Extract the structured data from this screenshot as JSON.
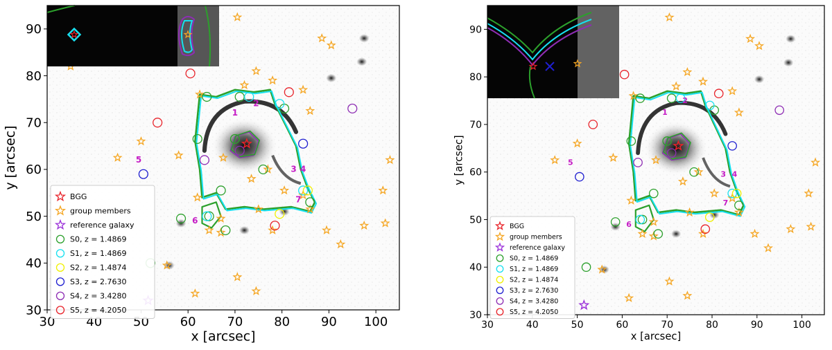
{
  "chart_data": [
    {
      "type": "scatter",
      "xlabel": "x [arcsec]",
      "ylabel": "y [arcsec]",
      "xlim": [
        30,
        105
      ],
      "ylim": [
        30,
        95
      ],
      "xticks": [
        30,
        40,
        50,
        60,
        70,
        80,
        90,
        100
      ],
      "yticks": [
        30,
        40,
        50,
        60,
        70,
        80,
        90
      ],
      "legend_position": "lower-left",
      "legend": [
        {
          "label": "BGG",
          "marker": "star",
          "color": "#e8232a"
        },
        {
          "label": "group members",
          "marker": "star",
          "color": "#f5a623"
        },
        {
          "label": "reference galaxy",
          "marker": "star",
          "color": "#9b30d9"
        },
        {
          "label": "S0, z = 1.4869",
          "marker": "circle",
          "color": "#2ca02c"
        },
        {
          "label": "S1, z = 1.4869",
          "marker": "circle",
          "color": "#17e0f0"
        },
        {
          "label": "S2, z = 1.4874",
          "marker": "circle",
          "color": "#f0f000"
        },
        {
          "label": "S3, z = 2.7630",
          "marker": "circle",
          "color": "#1f1fd0"
        },
        {
          "label": "S4, z = 3.4280",
          "marker": "circle",
          "color": "#8e2db4"
        },
        {
          "label": "S5, z = 4.2050",
          "marker": "circle",
          "color": "#e8232a"
        }
      ],
      "image_labels": [
        {
          "text": "1",
          "x": 70.0,
          "y": 71.5
        },
        {
          "text": "2",
          "x": 74.5,
          "y": 73.5
        },
        {
          "text": "3",
          "x": 82.5,
          "y": 59.5
        },
        {
          "text": "4",
          "x": 84.5,
          "y": 59.5
        },
        {
          "text": "5",
          "x": 49.5,
          "y": 61.5
        },
        {
          "text": "6",
          "x": 61.5,
          "y": 48.5
        },
        {
          "text": "7",
          "x": 83.5,
          "y": 53.0
        }
      ],
      "bgg": [
        {
          "x": 72.5,
          "y": 65.5
        }
      ],
      "group_members": [
        [
          70.5,
          92.5
        ],
        [
          88.5,
          88
        ],
        [
          90.5,
          86.5
        ],
        [
          84.5,
          77
        ],
        [
          78,
          79
        ],
        [
          74.5,
          81
        ],
        [
          72,
          78
        ],
        [
          86,
          72.5
        ],
        [
          62.5,
          76
        ],
        [
          50,
          66
        ],
        [
          45,
          62.5
        ],
        [
          58,
          63
        ],
        [
          67.5,
          62.5
        ],
        [
          73.5,
          58
        ],
        [
          77,
          60
        ],
        [
          80.5,
          55.5
        ],
        [
          84.5,
          54.5
        ],
        [
          86,
          51.5
        ],
        [
          75,
          51.5
        ],
        [
          67,
          49.5
        ],
        [
          64.5,
          47
        ],
        [
          67,
          46.5
        ],
        [
          62,
          54
        ],
        [
          55.5,
          39.5
        ],
        [
          70.5,
          37
        ],
        [
          74.5,
          34
        ],
        [
          61.5,
          33.5
        ],
        [
          78,
          47
        ],
        [
          89.5,
          47
        ],
        [
          92.5,
          44
        ],
        [
          97.5,
          48
        ],
        [
          102,
          48.5
        ],
        [
          101.5,
          55.5
        ],
        [
          103,
          62
        ],
        [
          35,
          82
        ]
      ],
      "reference_galaxy": [
        {
          "x": 51.5,
          "y": 32
        }
      ],
      "circles": {
        "S0": [
          [
            71,
            75.5
          ],
          [
            80.5,
            73
          ],
          [
            62,
            66.5
          ],
          [
            70,
            66.5
          ],
          [
            76,
            60
          ],
          [
            67,
            55.5
          ],
          [
            86,
            53
          ],
          [
            64.5,
            50
          ],
          [
            68,
            47
          ],
          [
            52,
            40
          ],
          [
            58.5,
            49.5
          ],
          [
            64,
            75.5
          ]
        ],
        "S1": [
          [
            73,
            75.5
          ],
          [
            79.5,
            74
          ],
          [
            84.5,
            55.5
          ],
          [
            64,
            50
          ]
        ],
        "S2": [
          [
            85.5,
            55.5
          ],
          [
            79.5,
            50.5
          ]
        ],
        "S3": [
          [
            84.5,
            65.5
          ],
          [
            50.5,
            59
          ]
        ],
        "S4": [
          [
            95,
            73
          ],
          [
            63.5,
            62
          ],
          [
            71,
            64
          ]
        ],
        "S5": [
          [
            60.5,
            80.5
          ],
          [
            53.5,
            70
          ],
          [
            81.5,
            76.5
          ],
          [
            78.5,
            48
          ]
        ]
      },
      "inset": {
        "position": "top-left"
      }
    },
    {
      "type": "scatter",
      "xlabel": "x [arcsec]",
      "ylabel": "y [arcsec]",
      "xlim": [
        30,
        105
      ],
      "ylim": [
        30,
        95
      ],
      "xticks": [
        30,
        40,
        50,
        60,
        70,
        80,
        90,
        100
      ],
      "yticks": [
        30,
        40,
        50,
        60,
        70,
        80,
        90
      ],
      "legend_position": "lower-left",
      "legend": [
        {
          "label": "BGG",
          "marker": "star",
          "color": "#e8232a"
        },
        {
          "label": "group members",
          "marker": "star",
          "color": "#f5a623"
        },
        {
          "label": "reference galaxy",
          "marker": "star",
          "color": "#9b30d9"
        },
        {
          "label": "S0, z = 1.4869",
          "marker": "circle",
          "color": "#2ca02c"
        },
        {
          "label": "S1, z = 1.4869",
          "marker": "circle",
          "color": "#17e0f0"
        },
        {
          "label": "S2, z = 1.4874",
          "marker": "circle",
          "color": "#f0f000"
        },
        {
          "label": "S3, z = 2.7630",
          "marker": "circle",
          "color": "#1f1fd0"
        },
        {
          "label": "S4, z = 3.4280",
          "marker": "circle",
          "color": "#8e2db4"
        },
        {
          "label": "S5, z = 4.2050",
          "marker": "circle",
          "color": "#e8232a"
        }
      ],
      "image_labels": [
        {
          "text": "1",
          "x": 69.5,
          "y": 72
        },
        {
          "text": "2",
          "x": 74,
          "y": 74.5
        },
        {
          "text": "3",
          "x": 82.5,
          "y": 59
        },
        {
          "text": "4",
          "x": 85,
          "y": 59
        },
        {
          "text": "5",
          "x": 48.5,
          "y": 61.5
        },
        {
          "text": "6",
          "x": 61.5,
          "y": 48.5
        },
        {
          "text": "7",
          "x": 83,
          "y": 53
        }
      ],
      "bgg": [
        {
          "x": 72.5,
          "y": 65.5
        }
      ],
      "group_members": [
        [
          70.5,
          92.5
        ],
        [
          88.5,
          88
        ],
        [
          90.5,
          86.5
        ],
        [
          84.5,
          77
        ],
        [
          78,
          79
        ],
        [
          74.5,
          81
        ],
        [
          72,
          78
        ],
        [
          86,
          72.5
        ],
        [
          62.5,
          76
        ],
        [
          50,
          66
        ],
        [
          45,
          62.5
        ],
        [
          58,
          63
        ],
        [
          67.5,
          62.5
        ],
        [
          73.5,
          58
        ],
        [
          77,
          60
        ],
        [
          80.5,
          55.5
        ],
        [
          84.5,
          54.5
        ],
        [
          86,
          51.5
        ],
        [
          75,
          51.5
        ],
        [
          67,
          49.5
        ],
        [
          64.5,
          47
        ],
        [
          67,
          46.5
        ],
        [
          62,
          54
        ],
        [
          55.5,
          39.5
        ],
        [
          70.5,
          37
        ],
        [
          74.5,
          34
        ],
        [
          61.5,
          33.5
        ],
        [
          78,
          47
        ],
        [
          89.5,
          47
        ],
        [
          92.5,
          44
        ],
        [
          97.5,
          48
        ],
        [
          102,
          48.5
        ],
        [
          101.5,
          55.5
        ],
        [
          103,
          62
        ],
        [
          35,
          82
        ]
      ],
      "reference_galaxy": [
        {
          "x": 51.5,
          "y": 32
        }
      ],
      "circles": {
        "S0": [
          [
            71,
            75.5
          ],
          [
            80.5,
            73
          ],
          [
            62,
            66.5
          ],
          [
            70,
            66.5
          ],
          [
            76,
            60
          ],
          [
            67,
            55.5
          ],
          [
            86,
            53
          ],
          [
            64.5,
            50
          ],
          [
            68,
            47
          ],
          [
            52,
            40
          ],
          [
            58.5,
            49.5
          ],
          [
            64,
            75.5
          ]
        ],
        "S1": [
          [
            73,
            75.5
          ],
          [
            79.5,
            74
          ],
          [
            84.5,
            55.5
          ],
          [
            64,
            50
          ]
        ],
        "S2": [
          [
            85.5,
            55.5
          ],
          [
            79.5,
            50.5
          ]
        ],
        "S3": [
          [
            84.5,
            65.5
          ],
          [
            50.5,
            59
          ]
        ],
        "S4": [
          [
            95,
            73
          ],
          [
            63.5,
            62
          ],
          [
            71,
            64
          ]
        ],
        "S5": [
          [
            60.5,
            80.5
          ],
          [
            53.5,
            70
          ],
          [
            81.5,
            76.5
          ],
          [
            78.5,
            48
          ]
        ]
      },
      "inset": {
        "position": "top-left"
      }
    }
  ]
}
